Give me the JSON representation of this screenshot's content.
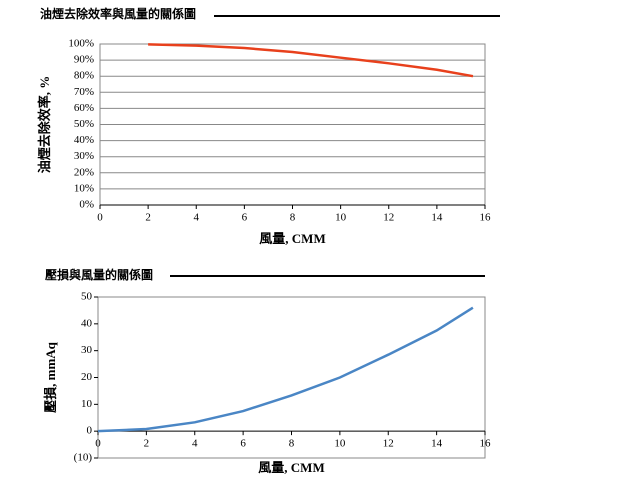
{
  "chart_data": [
    {
      "type": "line",
      "title": "油煙去除效率與風量的關係圖",
      "x_label": "風量, CMM",
      "y_label": "油煙去除效率, %",
      "xlim": [
        0,
        16
      ],
      "xticks": [
        0,
        2,
        4,
        6,
        8,
        10,
        12,
        14,
        16
      ],
      "ylim": [
        0,
        100
      ],
      "yticks": [
        {
          "value": 0,
          "label": "0%"
        },
        {
          "value": 10,
          "label": "10%"
        },
        {
          "value": 20,
          "label": "20%"
        },
        {
          "value": 30,
          "label": "30%"
        },
        {
          "value": 40,
          "label": "40%"
        },
        {
          "value": 50,
          "label": "50%"
        },
        {
          "value": 60,
          "label": "60%"
        },
        {
          "value": 70,
          "label": "70%"
        },
        {
          "value": 80,
          "label": "80%"
        },
        {
          "value": 90,
          "label": "90%"
        },
        {
          "value": 100,
          "label": "100%"
        }
      ],
      "grid": true,
      "series": [
        {
          "color": "#e8401c",
          "x": [
            2,
            4,
            6,
            8,
            10,
            12,
            14,
            15.5
          ],
          "values": [
            99.8,
            99,
            97.5,
            95,
            91.5,
            88,
            84,
            80
          ]
        }
      ]
    },
    {
      "type": "line",
      "title": "壓損與風量的關係圖",
      "x_label": "風量, CMM",
      "y_label": "壓損, mmAq",
      "xlim": [
        0,
        16
      ],
      "xticks": [
        0,
        2,
        4,
        6,
        8,
        10,
        12,
        14,
        16
      ],
      "ylim": [
        -10,
        50
      ],
      "yticks": [
        {
          "value": -10,
          "label": "(10)"
        },
        0,
        10,
        20,
        30,
        40,
        50
      ],
      "grid": false,
      "series": [
        {
          "color": "#4a86c5",
          "x": [
            0,
            2,
            4,
            6,
            8,
            10,
            12,
            14,
            15.5
          ],
          "values": [
            0,
            0.8,
            3.3,
            7.5,
            13.3,
            20,
            28.5,
            37.5,
            46
          ]
        }
      ]
    }
  ]
}
